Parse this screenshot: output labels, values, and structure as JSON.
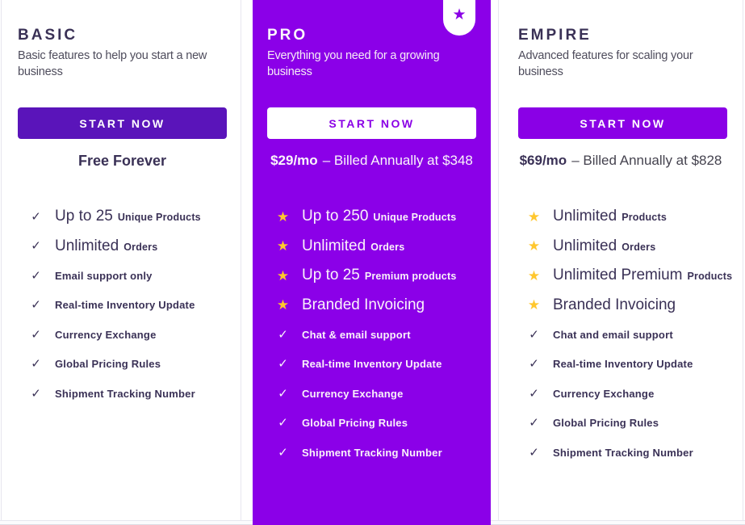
{
  "colors": {
    "pro_background": "#8B00E8",
    "accent_purple": "#8A00E6",
    "basic_button_purple": "#5A14BA",
    "star_gold": "#FFC72E",
    "heading_dark": "#3A3156"
  },
  "glyphs": {
    "check": "✓",
    "star": "★"
  },
  "plans": [
    {
      "id": "basic",
      "name": "BASIC",
      "description": "Basic features to help you start a new business",
      "cta": "START NOW",
      "price_note": "Free Forever",
      "features": [
        {
          "icon": "check",
          "main": "Up to 25",
          "suffix": "Unique Products"
        },
        {
          "icon": "check",
          "main": "Unlimited",
          "suffix": "Orders"
        },
        {
          "icon": "check",
          "main": "Email support only"
        },
        {
          "icon": "check",
          "main": "Real-time Inventory Update"
        },
        {
          "icon": "check",
          "main": "Currency Exchange"
        },
        {
          "icon": "check",
          "main": "Global Pricing Rules"
        },
        {
          "icon": "check",
          "main": "Shipment Tracking Number"
        }
      ]
    },
    {
      "id": "pro",
      "name": "PRO",
      "description": "Everything you need for a growing business",
      "cta": "START NOW",
      "badge_icon": "star",
      "price": "$29/mo",
      "price_suffix": "– Billed Annually at $348",
      "features": [
        {
          "icon": "star",
          "main": "Up to 250",
          "suffix": "Unique Products"
        },
        {
          "icon": "star",
          "main": "Unlimited",
          "suffix": "Orders"
        },
        {
          "icon": "star",
          "main": "Up to 25",
          "suffix": "Premium products"
        },
        {
          "icon": "star",
          "main": "Branded Invoicing"
        },
        {
          "icon": "check",
          "main": "Chat & email support"
        },
        {
          "icon": "check",
          "main": "Real-time Inventory Update"
        },
        {
          "icon": "check",
          "main": "Currency Exchange"
        },
        {
          "icon": "check",
          "main": "Global Pricing Rules"
        },
        {
          "icon": "check",
          "main": "Shipment Tracking Number"
        }
      ]
    },
    {
      "id": "empire",
      "name": "EMPIRE",
      "description": "Advanced features for scaling your business",
      "cta": "START NOW",
      "price": "$69/mo",
      "price_suffix": "– Billed Annually at $828",
      "features": [
        {
          "icon": "star",
          "main": "Unlimited",
          "suffix": "Products"
        },
        {
          "icon": "star",
          "main": "Unlimited",
          "suffix": "Orders"
        },
        {
          "icon": "star",
          "main": "Unlimited Premium",
          "suffix": "Products"
        },
        {
          "icon": "star",
          "main": "Branded Invoicing"
        },
        {
          "icon": "check",
          "main": "Chat and email support"
        },
        {
          "icon": "check",
          "main": "Real-time Inventory Update"
        },
        {
          "icon": "check",
          "main": "Currency Exchange"
        },
        {
          "icon": "check",
          "main": "Global Pricing Rules"
        },
        {
          "icon": "check",
          "main": "Shipment Tracking Number"
        }
      ]
    }
  ]
}
